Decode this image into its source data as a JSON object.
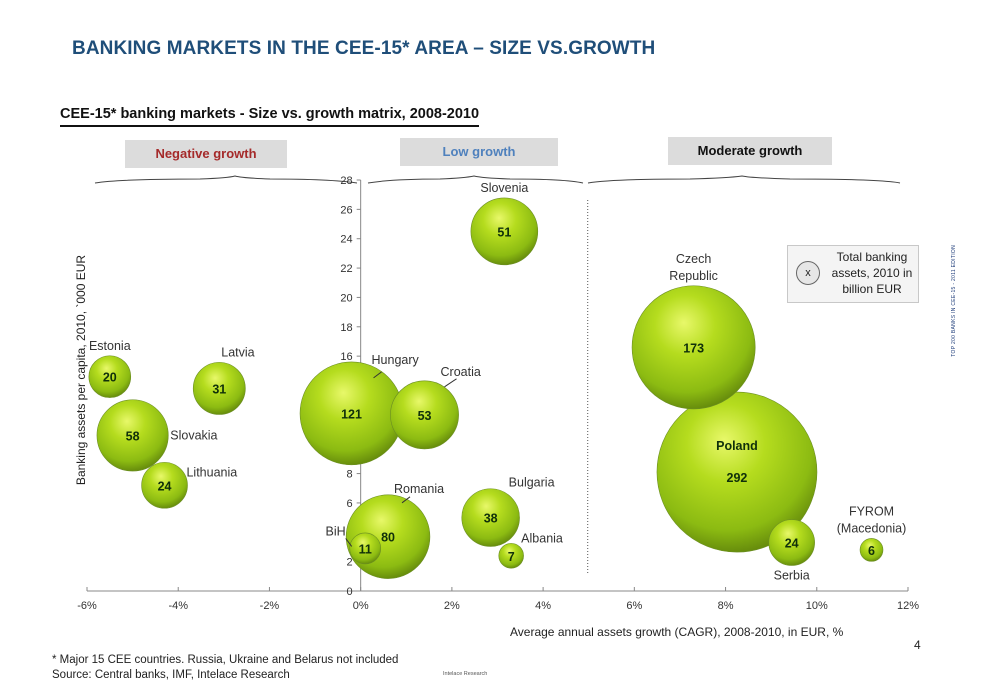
{
  "page": {
    "title": "BANKING MARKETS IN THE CEE-15* AREA – SIZE VS.GROWTH",
    "chart_title": "CEE-15* banking markets - Size vs. growth matrix, 2008-2010",
    "groups": [
      {
        "label": "Negative growth",
        "color": "#a52a2a"
      },
      {
        "label": "Low growth",
        "color": "#4f81bd"
      },
      {
        "label": "Moderate growth",
        "color": "#111111"
      }
    ],
    "legend": {
      "symbol": "x",
      "text": "Total banking assets, 2010 in billion EUR"
    },
    "footnote": "* Major 15 CEE countries. Russia, Ukraine and Belarus not included",
    "source": "Source: Central banks, IMF,  Intelace Research",
    "small_watermark": "Intelace Research",
    "side_watermark": "TOP 200 BANKS IN CEE-15 - 2011 EDITION",
    "page_number": "4"
  },
  "chart_data": {
    "type": "scatter",
    "subtype": "bubble",
    "title": "CEE-15* banking markets - Size vs. growth matrix, 2008-2010",
    "xlabel": "Average annual assets growth (CAGR), 2008-2010, in EUR, %",
    "ylabel": "Banking assets per capita, 2010, `000 EUR",
    "xlim": [
      -6,
      12
    ],
    "ylim": [
      0,
      28
    ],
    "x_ticks": [
      "-6%",
      "-4%",
      "-2%",
      "0%",
      "2%",
      "4%",
      "6%",
      "8%",
      "10%",
      "12%"
    ],
    "x_tick_values": [
      -6,
      -4,
      -2,
      0,
      2,
      4,
      6,
      8,
      10,
      12
    ],
    "y_ticks": [
      0,
      2,
      4,
      6,
      8,
      10,
      12,
      14,
      16,
      18,
      20,
      22,
      24,
      26,
      28
    ],
    "grid": false,
    "size_label": "Total banking assets, 2010 in billion EUR",
    "bubble_color": "#9acd32",
    "divider_x": 5,
    "series": [
      {
        "name": "Estonia",
        "x": -5.5,
        "y": 14.6,
        "size": 20,
        "label_pos": "top"
      },
      {
        "name": "Latvia",
        "x": -3.1,
        "y": 13.8,
        "size": 31,
        "label_pos": "top-right"
      },
      {
        "name": "Slovakia",
        "x": -5.0,
        "y": 10.6,
        "size": 58,
        "label_pos": "right"
      },
      {
        "name": "Lithuania",
        "x": -4.3,
        "y": 7.2,
        "size": 24,
        "label_pos": "top-right"
      },
      {
        "name": "Hungary",
        "x": -0.2,
        "y": 12.1,
        "size": 121,
        "label_pos": "top-right"
      },
      {
        "name": "Croatia",
        "x": 1.4,
        "y": 12.0,
        "size": 53,
        "label_pos": "top-right"
      },
      {
        "name": "Slovenia",
        "x": 3.15,
        "y": 24.5,
        "size": 51,
        "label_pos": "top"
      },
      {
        "name": "Romania",
        "x": 0.6,
        "y": 3.7,
        "size": 80,
        "label_pos": "top-right"
      },
      {
        "name": "BiH",
        "x": 0.1,
        "y": 2.9,
        "size": 11,
        "label_pos": "left"
      },
      {
        "name": "Bulgaria",
        "x": 2.85,
        "y": 5.0,
        "size": 38,
        "label_pos": "top-right"
      },
      {
        "name": "Albania",
        "x": 3.3,
        "y": 2.4,
        "size": 7,
        "label_pos": "top-right"
      },
      {
        "name": "Czech Republic",
        "x": 7.3,
        "y": 16.6,
        "size": 173,
        "label_pos": "top"
      },
      {
        "name": "Poland",
        "x": 8.25,
        "y": 8.1,
        "size": 292,
        "label_pos": "inside"
      },
      {
        "name": "Serbia",
        "x": 9.45,
        "y": 3.3,
        "size": 24,
        "label_pos": "bottom"
      },
      {
        "name": "FYROM (Macedonia)",
        "x": 11.2,
        "y": 2.8,
        "size": 6,
        "label_pos": "top"
      }
    ]
  }
}
